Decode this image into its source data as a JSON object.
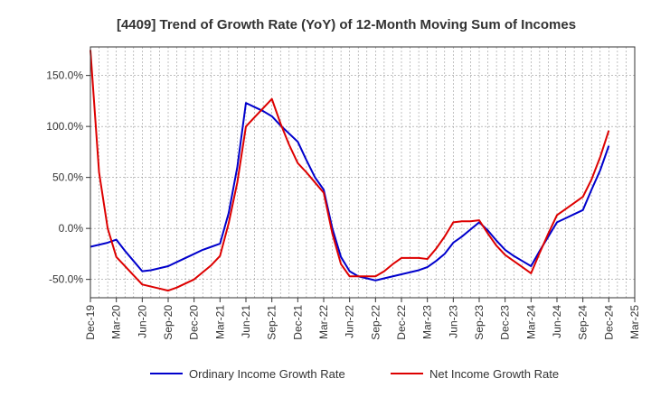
{
  "chart_data": {
    "type": "line",
    "title": "[4409]  Trend of Growth Rate (YoY) of 12-Month Moving Sum of Incomes",
    "x": [
      "Dec-19",
      "Mar-20",
      "Jun-20",
      "Sep-20",
      "Dec-20",
      "Mar-21",
      "Jun-21",
      "Sep-21",
      "Dec-21",
      "Mar-22",
      "Jun-22",
      "Sep-22",
      "Dec-22",
      "Mar-23",
      "Jun-23",
      "Sep-23",
      "Dec-23",
      "Mar-24",
      "Jun-24",
      "Sep-24",
      "Dec-24"
    ],
    "x_ticks": [
      "Dec-19",
      "Mar-20",
      "Jun-20",
      "Sep-20",
      "Dec-20",
      "Mar-21",
      "Jun-21",
      "Sep-21",
      "Dec-21",
      "Mar-22",
      "Jun-22",
      "Sep-22",
      "Dec-22",
      "Mar-23",
      "Jun-23",
      "Sep-23",
      "Dec-23",
      "Mar-24",
      "Jun-24",
      "Sep-24",
      "Dec-24",
      "Mar-25"
    ],
    "y_ticks": [
      "150.0%",
      "100.0%",
      "50.0%",
      "0.0%",
      "-50.0%"
    ],
    "y_tick_values": [
      150,
      100,
      50,
      0,
      -50
    ],
    "ylim": [
      -68,
      178
    ],
    "series": [
      {
        "name": "Ordinary Income Growth Rate",
        "color": "#0000cc",
        "x": [
          "Dec-19",
          "Jan-20",
          "Feb-20",
          "Mar-20",
          "Apr-20",
          "May-20",
          "Jun-20",
          "Jul-20",
          "Aug-20",
          "Sep-20",
          "Oct-20",
          "Nov-20",
          "Dec-20",
          "Jan-21",
          "Feb-21",
          "Mar-21",
          "Apr-21",
          "May-21",
          "Jun-21",
          "Jul-21",
          "Aug-21",
          "Sep-21",
          "Oct-21",
          "Nov-21",
          "Dec-21",
          "Jan-22",
          "Feb-22",
          "Mar-22",
          "Apr-22",
          "May-22",
          "Jun-22",
          "Jul-22",
          "Aug-22",
          "Sep-22",
          "Oct-22",
          "Nov-22",
          "Dec-22",
          "Jan-23",
          "Feb-23",
          "Mar-23",
          "Apr-23",
          "May-23",
          "Jun-23",
          "Jul-23",
          "Aug-23",
          "Sep-23",
          "Oct-23",
          "Nov-23",
          "Dec-23",
          "Jan-24",
          "Feb-24",
          "Mar-24",
          "Apr-24",
          "May-24",
          "Jun-24",
          "Jul-24",
          "Aug-24",
          "Sep-24",
          "Oct-24",
          "Nov-24",
          "Dec-24"
        ],
        "values": [
          -18,
          -16,
          -14,
          -11,
          -22,
          -32,
          -42,
          -41,
          -39,
          -37,
          -33,
          -29,
          -25,
          -21,
          -18,
          -15,
          15,
          60,
          123,
          119,
          115,
          110,
          101,
          93,
          85,
          67,
          50,
          38,
          0,
          -28,
          -42,
          -47,
          -49,
          -51,
          -49,
          -47,
          -45,
          -43,
          -41,
          -38,
          -32,
          -25,
          -14,
          -8,
          -1,
          6,
          -2,
          -12,
          -21,
          -27,
          -32,
          -37,
          -22,
          -8,
          6,
          10,
          14,
          18,
          38,
          57,
          81
        ]
      },
      {
        "name": "Net Income Growth Rate",
        "color": "#dd0000",
        "x": [
          "Dec-19",
          "Jan-20",
          "Feb-20",
          "Mar-20",
          "Apr-20",
          "May-20",
          "Jun-20",
          "Jul-20",
          "Aug-20",
          "Sep-20",
          "Oct-20",
          "Nov-20",
          "Dec-20",
          "Jan-21",
          "Feb-21",
          "Mar-21",
          "Apr-21",
          "May-21",
          "Jun-21",
          "Jul-21",
          "Aug-21",
          "Sep-21",
          "Oct-21",
          "Nov-21",
          "Dec-21",
          "Jan-22",
          "Feb-22",
          "Mar-22",
          "Apr-22",
          "May-22",
          "Jun-22",
          "Jul-22",
          "Aug-22",
          "Sep-22",
          "Oct-22",
          "Nov-22",
          "Dec-22",
          "Jan-23",
          "Feb-23",
          "Mar-23",
          "Apr-23",
          "May-23",
          "Jun-23",
          "Jul-23",
          "Aug-23",
          "Sep-23",
          "Oct-23",
          "Nov-23",
          "Dec-23",
          "Jan-24",
          "Feb-24",
          "Mar-24",
          "Apr-24",
          "May-24",
          "Jun-24",
          "Jul-24",
          "Aug-24",
          "Sep-24",
          "Oct-24",
          "Nov-24",
          "Dec-24"
        ],
        "values": [
          175,
          55,
          0,
          -28,
          -37,
          -46,
          -55,
          -57,
          -59,
          -61,
          -58,
          -54,
          -50,
          -43,
          -36,
          -27,
          5,
          45,
          100,
          109,
          118,
          127,
          103,
          82,
          64,
          55,
          45,
          35,
          -5,
          -35,
          -47,
          -47,
          -47,
          -47,
          -42,
          -35,
          -29,
          -29,
          -29,
          -30,
          -20,
          -8,
          6,
          7,
          7,
          8,
          -5,
          -17,
          -26,
          -32,
          -38,
          -44,
          -24,
          -5,
          13,
          19,
          25,
          31,
          48,
          70,
          96
        ]
      }
    ],
    "legend": {
      "position": "bottom",
      "items": [
        {
          "label": "Ordinary Income Growth Rate",
          "color": "#0000cc"
        },
        {
          "label": "Net Income Growth Rate",
          "color": "#dd0000"
        }
      ]
    },
    "grid": true
  }
}
